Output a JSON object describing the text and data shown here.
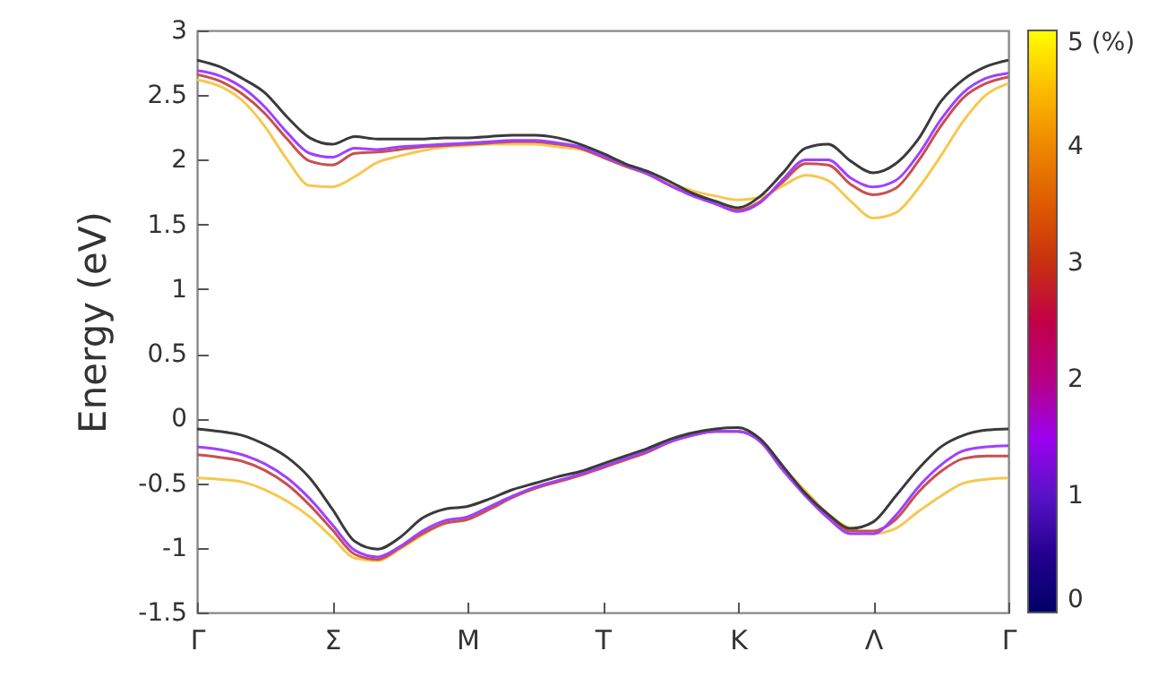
{
  "chart_data": {
    "type": "line",
    "ylabel": "Energy (eV)",
    "clim": [
      0,
      5
    ],
    "cticks": [
      0,
      1,
      2,
      3,
      4,
      {
        "value": 5,
        "label": "5 (%)"
      }
    ],
    "categories": [
      "Γ",
      null,
      null,
      null,
      null,
      null,
      "Σ",
      null,
      null,
      null,
      null,
      null,
      "M",
      null,
      null,
      null,
      null,
      null,
      "T",
      null,
      null,
      null,
      null,
      null,
      "K",
      null,
      null,
      null,
      null,
      null,
      "Λ",
      null,
      null,
      null,
      null,
      null,
      "Γ"
    ],
    "ylim": [
      -1.5,
      3
    ],
    "yticks": [
      -1.5,
      -1,
      -0.5,
      0,
      0.5,
      1,
      1.5,
      2,
      2.5,
      3
    ],
    "grid": false,
    "marker": "none",
    "line_style": "solid",
    "series": [
      {
        "color": "#f5c850",
        "values": [
          2.62,
          2.57,
          2.46,
          2.26,
          2.0,
          1.8,
          1.79,
          1.87,
          1.98,
          2.03,
          2.07,
          2.1,
          2.11,
          2.12,
          2.12,
          2.12,
          2.1,
          2.08,
          2.02,
          1.95,
          1.89,
          1.82,
          1.76,
          1.72,
          1.69,
          1.71,
          1.8,
          1.88,
          1.84,
          1.68,
          1.55,
          1.59,
          1.78,
          2.03,
          2.3,
          2.5,
          2.59
        ]
      },
      {
        "color": "#c85050",
        "values": [
          2.66,
          2.61,
          2.51,
          2.36,
          2.16,
          1.99,
          1.96,
          2.05,
          2.06,
          2.08,
          2.1,
          2.11,
          2.12,
          2.13,
          2.14,
          2.14,
          2.12,
          2.09,
          2.02,
          1.95,
          1.89,
          1.8,
          1.73,
          1.66,
          1.61,
          1.68,
          1.83,
          1.97,
          1.96,
          1.81,
          1.73,
          1.78,
          1.99,
          2.26,
          2.48,
          2.59,
          2.64
        ]
      },
      {
        "color": "#a040ff",
        "values": [
          2.69,
          2.65,
          2.56,
          2.41,
          2.21,
          2.05,
          2.02,
          2.09,
          2.08,
          2.1,
          2.11,
          2.12,
          2.13,
          2.14,
          2.15,
          2.15,
          2.13,
          2.1,
          2.03,
          1.96,
          1.89,
          1.8,
          1.72,
          1.66,
          1.6,
          1.67,
          1.85,
          2.0,
          2.0,
          1.86,
          1.79,
          1.84,
          2.04,
          2.31,
          2.52,
          2.63,
          2.67
        ]
      },
      {
        "color": "#3a3a3a",
        "values": [
          2.77,
          2.72,
          2.63,
          2.52,
          2.33,
          2.17,
          2.12,
          2.18,
          2.16,
          2.16,
          2.16,
          2.17,
          2.17,
          2.18,
          2.19,
          2.19,
          2.17,
          2.12,
          2.05,
          1.97,
          1.91,
          1.83,
          1.74,
          1.68,
          1.63,
          1.72,
          1.9,
          2.09,
          2.12,
          1.99,
          1.9,
          1.97,
          2.16,
          2.45,
          2.62,
          2.72,
          2.77
        ]
      },
      {
        "color": "#f5c850",
        "values": [
          -0.46,
          -0.47,
          -0.49,
          -0.55,
          -0.64,
          -0.76,
          -0.92,
          -1.08,
          -1.1,
          -1.01,
          -0.9,
          -0.81,
          -0.78,
          -0.7,
          -0.61,
          -0.54,
          -0.49,
          -0.44,
          -0.38,
          -0.32,
          -0.25,
          -0.18,
          -0.12,
          -0.1,
          -0.1,
          -0.17,
          -0.38,
          -0.56,
          -0.74,
          -0.85,
          -0.89,
          -0.85,
          -0.72,
          -0.6,
          -0.5,
          -0.47,
          -0.46
        ]
      },
      {
        "color": "#c85050",
        "values": [
          -0.28,
          -0.3,
          -0.33,
          -0.4,
          -0.51,
          -0.67,
          -0.86,
          -1.05,
          -1.09,
          -1.0,
          -0.89,
          -0.81,
          -0.78,
          -0.7,
          -0.61,
          -0.54,
          -0.49,
          -0.44,
          -0.38,
          -0.32,
          -0.26,
          -0.18,
          -0.13,
          -0.1,
          -0.1,
          -0.18,
          -0.4,
          -0.59,
          -0.76,
          -0.87,
          -0.87,
          -0.78,
          -0.57,
          -0.41,
          -0.31,
          -0.29,
          -0.29
        ]
      },
      {
        "color": "#a040ff",
        "values": [
          -0.22,
          -0.24,
          -0.28,
          -0.35,
          -0.46,
          -0.62,
          -0.82,
          -1.02,
          -1.07,
          -0.99,
          -0.87,
          -0.79,
          -0.76,
          -0.68,
          -0.6,
          -0.53,
          -0.48,
          -0.43,
          -0.37,
          -0.31,
          -0.25,
          -0.18,
          -0.13,
          -0.1,
          -0.1,
          -0.18,
          -0.4,
          -0.6,
          -0.77,
          -0.89,
          -0.89,
          -0.75,
          -0.53,
          -0.36,
          -0.25,
          -0.22,
          -0.21
        ]
      },
      {
        "color": "#3a3a3a",
        "values": [
          -0.08,
          -0.1,
          -0.13,
          -0.2,
          -0.3,
          -0.46,
          -0.7,
          -0.95,
          -1.01,
          -0.92,
          -0.77,
          -0.7,
          -0.68,
          -0.62,
          -0.55,
          -0.5,
          -0.45,
          -0.41,
          -0.35,
          -0.29,
          -0.23,
          -0.16,
          -0.11,
          -0.08,
          -0.07,
          -0.16,
          -0.37,
          -0.58,
          -0.74,
          -0.85,
          -0.8,
          -0.6,
          -0.39,
          -0.22,
          -0.13,
          -0.09,
          -0.08
        ]
      }
    ]
  }
}
